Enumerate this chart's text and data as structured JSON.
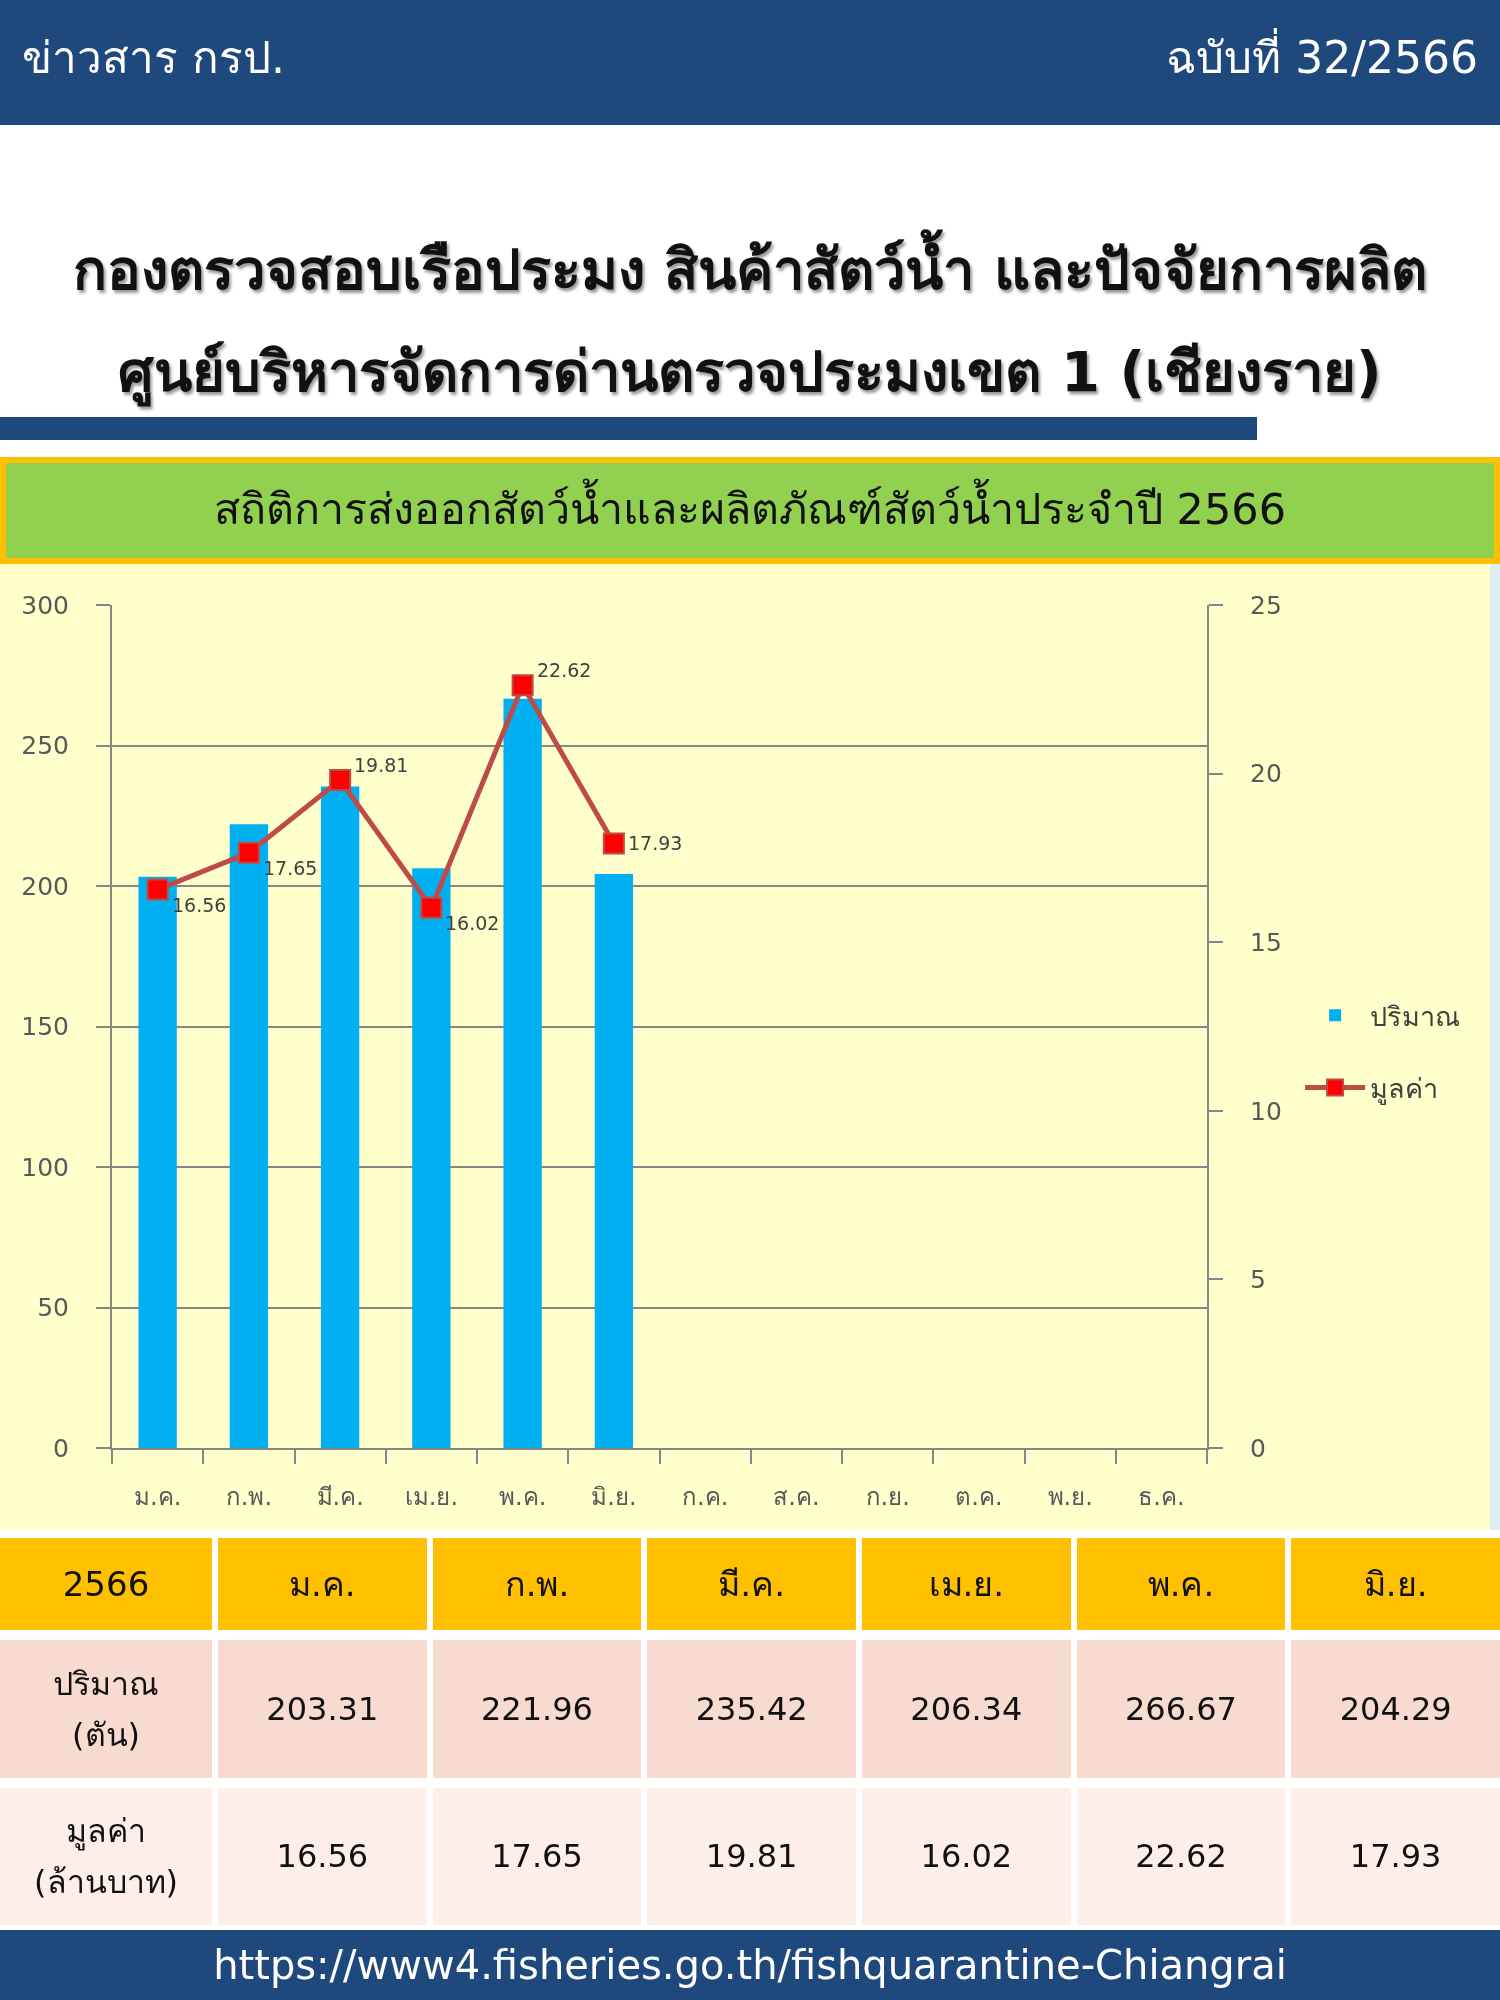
{
  "chart_data": {
    "type": "bar",
    "title": "สถิติการส่งออกสัตว์น้ำและผลิตภัณฑ์สัตว์น้ำประจำปี 2566",
    "annotations": [
      "ข่าวสาร กรป.",
      "ฉบับที่ 32/2566",
      "กองตรวจสอบเรือประมง สินค้าสัตว์น้ำ และปัจจัยการผลิต",
      "ศูนย์บริหารจัดการด่านตรวจประมงเขต 1 (เชียงราย)",
      "2566",
      "ปริมาณ\n(ตัน)",
      "มูลค่า\n(ล้านบาท)",
      "https://www4.fisheries.go.th/fishquarantine-Chiangrai",
      "203.31",
      "221.96",
      "235.42",
      "206.34",
      "266.67",
      "204.29"
    ],
    "categories": [
      "ม.ค.",
      "ก.พ.",
      "มี.ค.",
      "เม.ย.",
      "พ.ค.",
      "มิ.ย.",
      "ก.ค.",
      "ส.ค.",
      "ก.ย.",
      "ต.ค.",
      "พ.ย.",
      "ธ.ค."
    ],
    "series": [
      {
        "name": "ปริมาณ",
        "color": "#00b0f0",
        "values": [
          203.31,
          221.96,
          235.42,
          206.34,
          266.67,
          204.29,
          null,
          null,
          null,
          null,
          null,
          null
        ]
      },
      {
        "name": "มูลค่า",
        "type": "line",
        "axis": "y2",
        "color": "#be4b48",
        "colors": [
          "#ff0000",
          "#ff0000",
          "#ff0000",
          "#ff0000",
          "#ff0000",
          "#ff0000",
          "#ff0000",
          "#ff0000",
          "#ff0000",
          "#ff0000",
          "#ff0000",
          "#ff0000"
        ],
        "values": [
          16.56,
          17.65,
          19.81,
          16.02,
          22.62,
          17.93,
          null,
          null,
          null,
          null,
          null,
          null
        ],
        "value_labels": [
          "16.56",
          "17.65",
          "19.81",
          "16.02",
          "22.62",
          "17.93",
          null,
          null,
          null,
          null,
          null,
          null
        ]
      }
    ],
    "ylim": [
      0,
      300
    ],
    "yticks": [
      0,
      50,
      100,
      150,
      200,
      250,
      300
    ],
    "y2lim": [
      0,
      25
    ],
    "y2ticks": [
      0,
      5,
      10,
      15,
      20,
      25
    ],
    "grid": "y",
    "legend": "right",
    "marker": "square"
  }
}
